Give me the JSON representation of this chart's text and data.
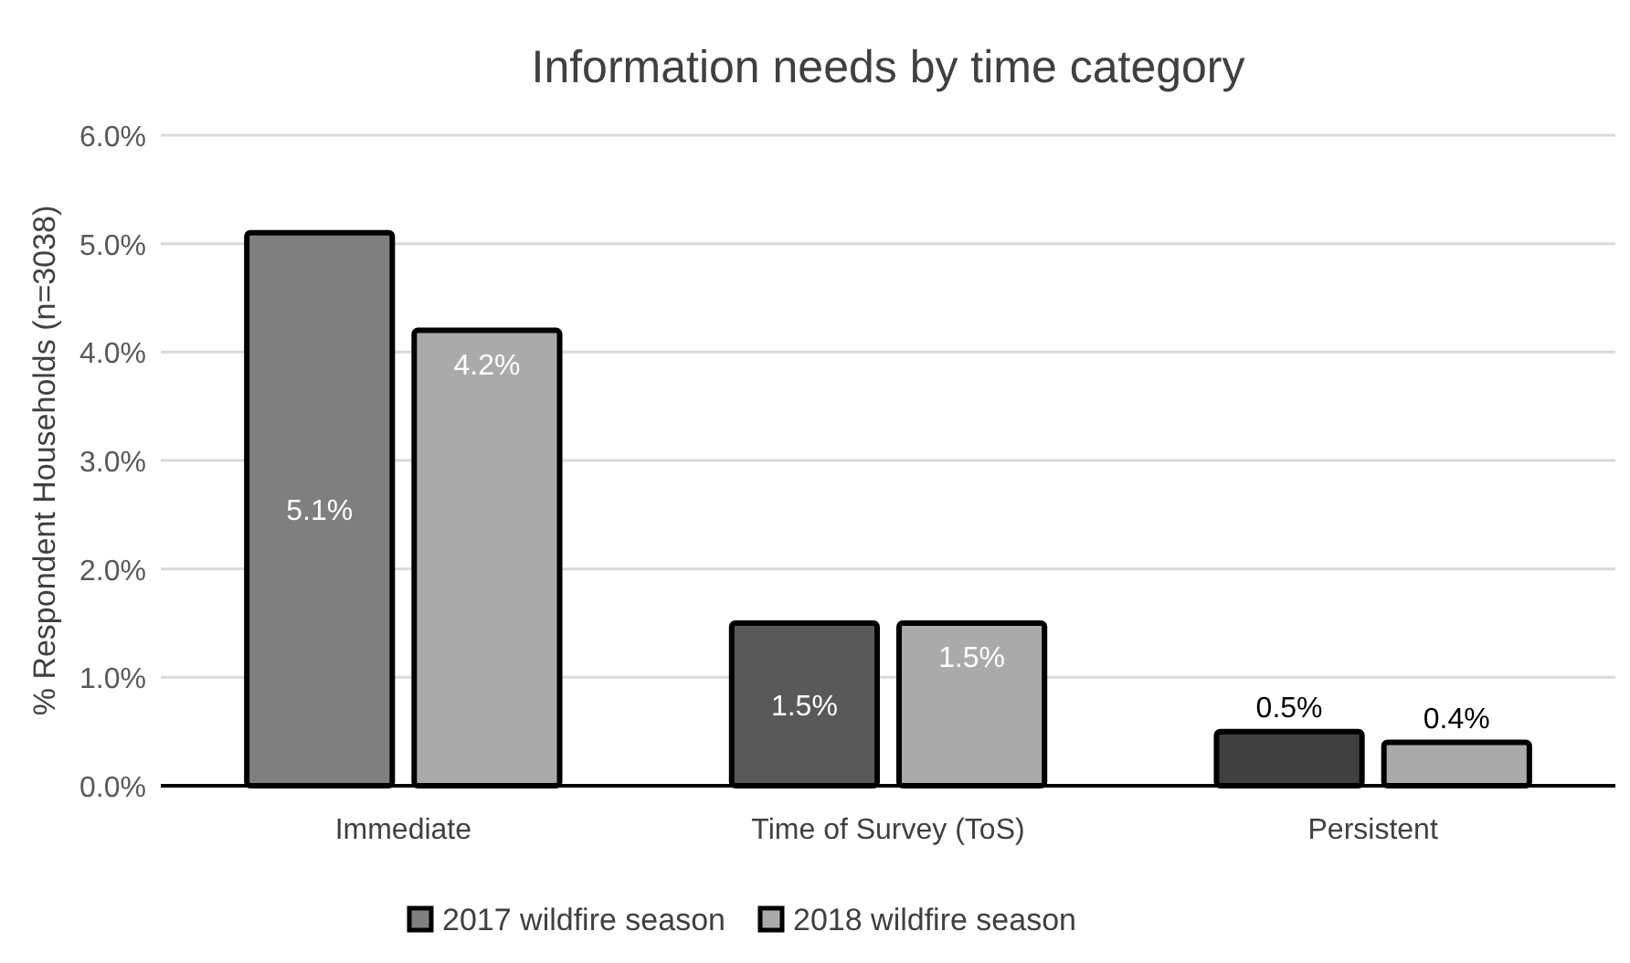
{
  "chart_data": {
    "type": "bar",
    "title": "Information needs by time category",
    "ylabel": "% Respondent Households (n=3038)",
    "categories": [
      "Immediate",
      "Time of Survey (ToS)",
      "Persistent"
    ],
    "series": [
      {
        "name": "2017 wildfire season",
        "color": "#7f7f7f",
        "colors": [
          "#7f7f7f",
          "#595959",
          "#404040"
        ],
        "values": [
          5.1,
          1.5,
          0.5
        ],
        "value_labels": [
          "5.1%",
          "1.5%",
          "0.5%"
        ]
      },
      {
        "name": "2018 wildfire season",
        "color": "#aaaaaa",
        "values": [
          4.2,
          1.5,
          0.4
        ],
        "value_labels": [
          "4.2%",
          "1.5%",
          "0.4%"
        ]
      }
    ],
    "ylim": [
      0,
      6
    ],
    "yticks": [
      {
        "value": 0,
        "label": "0.0%"
      },
      {
        "value": 1,
        "label": "1.0%"
      },
      {
        "value": 2,
        "label": "2.0%"
      },
      {
        "value": 3,
        "label": "3.0%"
      },
      {
        "value": 4,
        "label": "4.0%"
      },
      {
        "value": 5,
        "label": "5.0%"
      },
      {
        "value": 6,
        "label": "6.0%"
      }
    ],
    "grid": "y",
    "legend": "bottom"
  }
}
